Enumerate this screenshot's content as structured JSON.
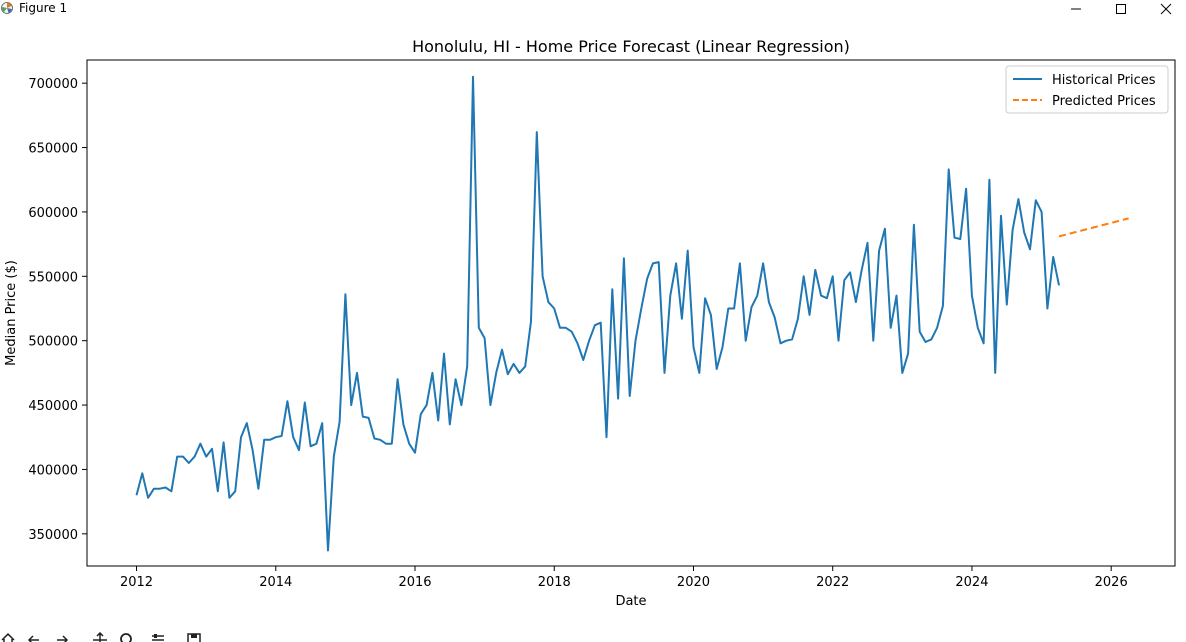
{
  "window": {
    "title": "Figure 1",
    "icon": "matplotlib-icon"
  },
  "toolbar": {
    "tools": [
      "home-icon",
      "back-icon",
      "forward-icon",
      "pan-icon",
      "zoom-icon",
      "configure-icon",
      "save-icon"
    ]
  },
  "chart_data": {
    "type": "line",
    "title": "Honolulu, HI - Home Price Forecast (Linear Regression)",
    "xlabel": "Date",
    "ylabel": "Median Price ($)",
    "xlim": [
      "2011-04-15",
      "2026-12-01"
    ],
    "ylim": [
      325000,
      718000
    ],
    "x_ticks": [
      "2012",
      "2014",
      "2016",
      "2018",
      "2020",
      "2022",
      "2024",
      "2026"
    ],
    "y_ticks": [
      "350000",
      "400000",
      "450000",
      "500000",
      "550000",
      "600000",
      "650000",
      "700000"
    ],
    "grid": false,
    "legend": "top-right",
    "series": [
      {
        "name": "Historical Prices",
        "color": "#1f77b4",
        "style": "solid",
        "x": [
          "2012-01",
          "2012-02",
          "2012-03",
          "2012-04",
          "2012-05",
          "2012-06",
          "2012-07",
          "2012-08",
          "2012-09",
          "2012-10",
          "2012-11",
          "2012-12",
          "2013-01",
          "2013-02",
          "2013-03",
          "2013-04",
          "2013-05",
          "2013-06",
          "2013-07",
          "2013-08",
          "2013-09",
          "2013-10",
          "2013-11",
          "2013-12",
          "2014-01",
          "2014-02",
          "2014-03",
          "2014-04",
          "2014-05",
          "2014-06",
          "2014-07",
          "2014-08",
          "2014-09",
          "2014-10",
          "2014-11",
          "2014-12",
          "2015-01",
          "2015-02",
          "2015-03",
          "2015-04",
          "2015-05",
          "2015-06",
          "2015-07",
          "2015-08",
          "2015-09",
          "2015-10",
          "2015-11",
          "2015-12",
          "2016-01",
          "2016-02",
          "2016-03",
          "2016-04",
          "2016-05",
          "2016-06",
          "2016-07",
          "2016-08",
          "2016-09",
          "2016-10",
          "2016-11",
          "2016-12",
          "2017-01",
          "2017-02",
          "2017-03",
          "2017-04",
          "2017-05",
          "2017-06",
          "2017-07",
          "2017-08",
          "2017-09",
          "2017-10",
          "2017-11",
          "2017-12",
          "2018-01",
          "2018-02",
          "2018-03",
          "2018-04",
          "2018-05",
          "2018-06",
          "2018-07",
          "2018-08",
          "2018-09",
          "2018-10",
          "2018-11",
          "2018-12",
          "2019-01",
          "2019-02",
          "2019-03",
          "2019-04",
          "2019-05",
          "2019-06",
          "2019-07",
          "2019-08",
          "2019-09",
          "2019-10",
          "2019-11",
          "2019-12",
          "2020-01",
          "2020-02",
          "2020-03",
          "2020-04",
          "2020-05",
          "2020-06",
          "2020-07",
          "2020-08",
          "2020-09",
          "2020-10",
          "2020-11",
          "2020-12",
          "2021-01",
          "2021-02",
          "2021-03",
          "2021-04",
          "2021-05",
          "2021-06",
          "2021-07",
          "2021-08",
          "2021-09",
          "2021-10",
          "2021-11",
          "2021-12",
          "2022-01",
          "2022-02",
          "2022-03",
          "2022-04",
          "2022-05",
          "2022-06",
          "2022-07",
          "2022-08",
          "2022-09",
          "2022-10",
          "2022-11",
          "2022-12",
          "2023-01",
          "2023-02",
          "2023-03",
          "2023-04",
          "2023-05",
          "2023-06",
          "2023-07",
          "2023-08",
          "2023-09",
          "2023-10",
          "2023-11",
          "2023-12",
          "2024-01",
          "2024-02",
          "2024-03",
          "2024-04",
          "2024-05",
          "2024-06",
          "2024-07",
          "2024-08",
          "2024-09",
          "2024-10",
          "2024-11",
          "2024-12",
          "2025-01",
          "2025-02",
          "2025-03",
          "2025-04"
        ],
        "values": [
          380000,
          397000,
          378000,
          385000,
          385000,
          386000,
          383000,
          410000,
          410000,
          405000,
          410000,
          420000,
          410000,
          416000,
          383000,
          421000,
          378000,
          383000,
          425000,
          436000,
          415000,
          385000,
          423000,
          423000,
          425000,
          426000,
          453000,
          425000,
          415000,
          452000,
          418000,
          420000,
          436000,
          337000,
          410000,
          437000,
          536000,
          450000,
          475000,
          441000,
          440000,
          424000,
          423000,
          420000,
          420000,
          470000,
          435000,
          420000,
          413000,
          443000,
          450000,
          475000,
          438000,
          490000,
          435000,
          470000,
          450000,
          480000,
          705000,
          510000,
          502000,
          450000,
          475000,
          493000,
          474000,
          482000,
          475000,
          480000,
          515000,
          662000,
          550000,
          530000,
          525000,
          510000,
          510000,
          507000,
          498000,
          485000,
          500000,
          512000,
          514000,
          425000,
          540000,
          455000,
          564000,
          457000,
          500000,
          525000,
          548000,
          560000,
          561000,
          475000,
          535000,
          560000,
          517000,
          570000,
          495000,
          475000,
          533000,
          520000,
          478000,
          495000,
          525000,
          525000,
          560000,
          500000,
          526000,
          535000,
          560000,
          530000,
          518000,
          498000,
          500000,
          501000,
          517000,
          550000,
          520000,
          555000,
          535000,
          533000,
          550000,
          500000,
          547000,
          553000,
          530000,
          555000,
          576000,
          500000,
          570000,
          587000,
          510000,
          535000,
          475000,
          490000,
          590000,
          507000,
          499000,
          501000,
          510000,
          527000,
          633000,
          580000,
          579000,
          618000,
          535000,
          510000,
          498000,
          625000,
          475000,
          597000,
          528000,
          586000,
          610000,
          584000,
          571000,
          609000,
          600000,
          525000,
          565000,
          543000
        ]
      },
      {
        "name": "Predicted Prices",
        "color": "#ff7f0e",
        "style": "dashed",
        "x": [
          "2025-04",
          "2026-04"
        ],
        "values": [
          581000,
          595000
        ]
      }
    ]
  }
}
